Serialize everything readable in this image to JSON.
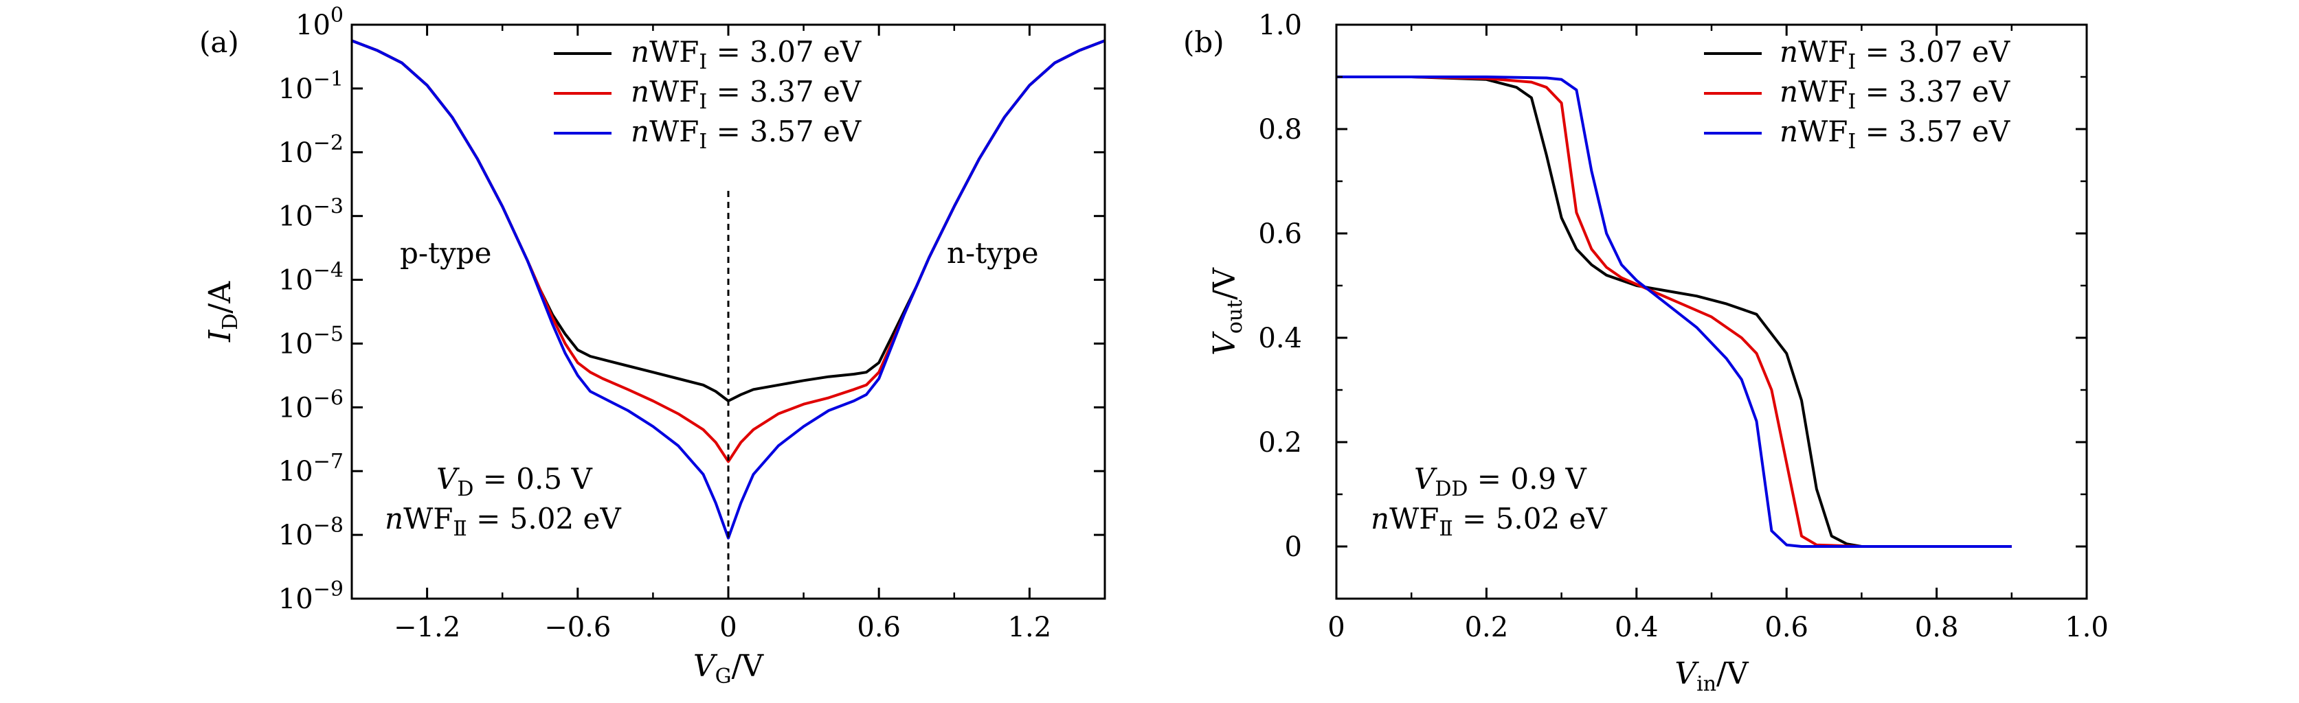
{
  "chart_data": [
    {
      "type": "line",
      "panel_label": "(a)",
      "xlabel": "V_G/V",
      "ylabel": "I_D/A",
      "xlim": [
        -1.5,
        1.5
      ],
      "ylim_log10": [
        -9,
        0
      ],
      "yscale": "log",
      "xticks": [
        -1.2,
        -0.6,
        0,
        0.6,
        1.2
      ],
      "xtick_labels": [
        "−1.2",
        "−0.6",
        "0",
        "0.6",
        "1.2"
      ],
      "ytick_exponents": [
        0,
        -1,
        -2,
        -3,
        -4,
        -5,
        -6,
        -7,
        -8,
        -9
      ],
      "ytick_base": "10",
      "annotations": {
        "left_region": "p-type",
        "right_region": "n-type",
        "condition_line1": "V_D = 0.5 V",
        "condition_line2": "nWF_II = 5.02 eV"
      },
      "vline_x": 0,
      "x": [
        -1.5,
        -1.4,
        -1.3,
        -1.2,
        -1.1,
        -1.0,
        -0.9,
        -0.8,
        -0.75,
        -0.7,
        -0.65,
        -0.6,
        -0.55,
        -0.5,
        -0.4,
        -0.3,
        -0.2,
        -0.1,
        -0.05,
        0,
        0.05,
        0.1,
        0.2,
        0.3,
        0.4,
        0.5,
        0.55,
        0.6,
        0.65,
        0.7,
        0.75,
        0.8,
        0.9,
        1.0,
        1.1,
        1.2,
        1.3,
        1.4,
        1.5
      ],
      "series": [
        {
          "name": "nWF_I = 3.07 eV",
          "color": "#000000",
          "log10_values": [
            -0.25,
            -0.4,
            -0.6,
            -0.95,
            -1.45,
            -2.1,
            -2.85,
            -3.7,
            -4.15,
            -4.55,
            -4.85,
            -5.1,
            -5.2,
            -5.25,
            -5.35,
            -5.45,
            -5.55,
            -5.65,
            -5.75,
            -5.9,
            -5.8,
            -5.72,
            -5.65,
            -5.58,
            -5.52,
            -5.48,
            -5.45,
            -5.3,
            -4.9,
            -4.5,
            -4.1,
            -3.65,
            -2.85,
            -2.1,
            -1.45,
            -0.95,
            -0.6,
            -0.4,
            -0.25
          ]
        },
        {
          "name": "nWF_I = 3.37 eV",
          "color": "#e00000",
          "log10_values": [
            -0.25,
            -0.4,
            -0.6,
            -0.95,
            -1.45,
            -2.1,
            -2.85,
            -3.7,
            -4.15,
            -4.6,
            -5.0,
            -5.3,
            -5.45,
            -5.55,
            -5.72,
            -5.9,
            -6.1,
            -6.35,
            -6.55,
            -6.85,
            -6.55,
            -6.35,
            -6.1,
            -5.95,
            -5.85,
            -5.72,
            -5.65,
            -5.45,
            -5.0,
            -4.55,
            -4.1,
            -3.65,
            -2.85,
            -2.1,
            -1.45,
            -0.95,
            -0.6,
            -0.4,
            -0.25
          ]
        },
        {
          "name": "nWF_I = 3.57 eV",
          "color": "#0000e0",
          "log10_values": [
            -0.25,
            -0.4,
            -0.6,
            -0.95,
            -1.45,
            -2.1,
            -2.85,
            -3.7,
            -4.2,
            -4.7,
            -5.15,
            -5.5,
            -5.75,
            -5.85,
            -6.05,
            -6.3,
            -6.6,
            -7.05,
            -7.5,
            -8.05,
            -7.5,
            -7.05,
            -6.6,
            -6.3,
            -6.05,
            -5.9,
            -5.8,
            -5.55,
            -5.05,
            -4.55,
            -4.1,
            -3.65,
            -2.85,
            -2.1,
            -1.45,
            -0.95,
            -0.6,
            -0.4,
            -0.25
          ]
        }
      ],
      "legend_labels": [
        "nWF_I = 3.07 eV",
        "nWF_I = 3.37 eV",
        "nWF_I = 3.57 eV"
      ],
      "legend_placement": "top-center"
    },
    {
      "type": "line",
      "panel_label": "(b)",
      "xlabel": "V_in/V",
      "ylabel": "V_out/V",
      "xlim": [
        0,
        1.0
      ],
      "ylim": [
        -0.1,
        1.0
      ],
      "xticks": [
        0,
        0.2,
        0.4,
        0.6,
        0.8,
        1.0
      ],
      "xtick_labels": [
        "0",
        "0.2",
        "0.4",
        "0.6",
        "0.8",
        "1.0"
      ],
      "yticks": [
        0,
        0.2,
        0.4,
        0.6,
        0.8,
        1.0
      ],
      "ytick_labels": [
        "0",
        "0.2",
        "0.4",
        "0.6",
        "0.8",
        "1.0"
      ],
      "annotations": {
        "condition_line1": "V_DD = 0.9 V",
        "condition_line2": "nWF_II = 5.02 eV"
      },
      "series": [
        {
          "name": "nWF_I = 3.07 eV",
          "color": "#000000",
          "x": [
            0,
            0.1,
            0.2,
            0.24,
            0.26,
            0.28,
            0.3,
            0.32,
            0.34,
            0.36,
            0.4,
            0.44,
            0.48,
            0.52,
            0.56,
            0.6,
            0.62,
            0.64,
            0.66,
            0.68,
            0.7,
            0.8,
            0.9
          ],
          "y": [
            0.9,
            0.9,
            0.895,
            0.88,
            0.86,
            0.75,
            0.63,
            0.57,
            0.54,
            0.52,
            0.5,
            0.49,
            0.48,
            0.465,
            0.445,
            0.37,
            0.28,
            0.11,
            0.02,
            0.005,
            0.0,
            0.0,
            0.0
          ]
        },
        {
          "name": "nWF_I = 3.37 eV",
          "color": "#e00000",
          "x": [
            0,
            0.1,
            0.2,
            0.26,
            0.28,
            0.3,
            0.32,
            0.34,
            0.36,
            0.38,
            0.42,
            0.46,
            0.5,
            0.54,
            0.56,
            0.58,
            0.6,
            0.62,
            0.64,
            0.7,
            0.8,
            0.9
          ],
          "y": [
            0.9,
            0.9,
            0.897,
            0.89,
            0.88,
            0.85,
            0.64,
            0.57,
            0.535,
            0.515,
            0.49,
            0.465,
            0.44,
            0.4,
            0.37,
            0.3,
            0.16,
            0.02,
            0.003,
            0.0,
            0.0,
            0.0
          ]
        },
        {
          "name": "nWF_I = 3.57 eV",
          "color": "#0000e0",
          "x": [
            0,
            0.1,
            0.2,
            0.28,
            0.3,
            0.32,
            0.34,
            0.36,
            0.38,
            0.4,
            0.44,
            0.48,
            0.52,
            0.54,
            0.56,
            0.58,
            0.6,
            0.62,
            0.7,
            0.8,
            0.9
          ],
          "y": [
            0.9,
            0.9,
            0.9,
            0.898,
            0.895,
            0.875,
            0.72,
            0.6,
            0.54,
            0.51,
            0.465,
            0.42,
            0.36,
            0.32,
            0.24,
            0.03,
            0.003,
            0.0,
            0.0,
            0.0,
            0.0
          ]
        }
      ],
      "legend_labels": [
        "nWF_I = 3.07 eV",
        "nWF_I = 3.37 eV",
        "nWF_I = 3.57 eV"
      ],
      "legend_placement": "top-right"
    }
  ]
}
